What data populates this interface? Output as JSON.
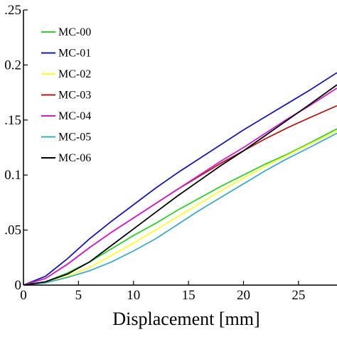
{
  "chart_data": {
    "type": "line",
    "title": "",
    "xlabel": "Displacement [mm]",
    "ylabel": "",
    "xlim": [
      0,
      28.5
    ],
    "ylim": [
      0,
      0.25
    ],
    "x_ticks": [
      0,
      5,
      10,
      15,
      20,
      25
    ],
    "x_tick_labels": [
      "0",
      "5",
      "10",
      "15",
      "20",
      "25"
    ],
    "y_ticks": [
      0,
      0.05,
      0.1,
      0.15,
      0.2,
      0.25
    ],
    "y_tick_labels": [
      "0",
      ".05",
      "0.1",
      ".15",
      "0.2",
      ".25"
    ],
    "grid": false,
    "legend_position": "top-left",
    "series": [
      {
        "name": "MC-00",
        "color": "#33cc33",
        "x": [
          0,
          2,
          4,
          6,
          8,
          10,
          12,
          14,
          16,
          18,
          20,
          22,
          24,
          26,
          28.5
        ],
        "y": [
          0,
          0.003,
          0.011,
          0.021,
          0.033,
          0.045,
          0.056,
          0.068,
          0.079,
          0.09,
          0.1,
          0.11,
          0.119,
          0.129,
          0.142
        ]
      },
      {
        "name": "MC-01",
        "color": "#1a1aa6",
        "x": [
          0,
          2,
          4,
          6,
          8,
          10,
          12,
          14,
          16,
          18,
          20,
          22,
          24,
          26,
          28.5
        ],
        "y": [
          0,
          0.008,
          0.024,
          0.042,
          0.058,
          0.073,
          0.088,
          0.102,
          0.115,
          0.128,
          0.141,
          0.153,
          0.165,
          0.177,
          0.193
        ]
      },
      {
        "name": "MC-02",
        "color": "#ffff33",
        "x": [
          0,
          2,
          4,
          6,
          8,
          10,
          12,
          14,
          16,
          18,
          20,
          22,
          24,
          26,
          28.5
        ],
        "y": [
          0,
          0.002,
          0.008,
          0.016,
          0.027,
          0.038,
          0.05,
          0.062,
          0.074,
          0.086,
          0.097,
          0.108,
          0.118,
          0.128,
          0.14
        ]
      },
      {
        "name": "MC-03",
        "color": "#b31a1a",
        "x": [
          0,
          2,
          4,
          6,
          8,
          10,
          12,
          14,
          16,
          18,
          20,
          22,
          24,
          26,
          28.5
        ],
        "y": [
          0,
          0.006,
          0.019,
          0.034,
          0.048,
          0.061,
          0.074,
          0.087,
          0.099,
          0.111,
          0.122,
          0.133,
          0.143,
          0.152,
          0.163
        ]
      },
      {
        "name": "MC-04",
        "color": "#cc22cc",
        "x": [
          0,
          2,
          4,
          6,
          8,
          10,
          12,
          14,
          16,
          18,
          20,
          22,
          24,
          26,
          28.5
        ],
        "y": [
          0,
          0.006,
          0.019,
          0.034,
          0.048,
          0.061,
          0.074,
          0.087,
          0.1,
          0.113,
          0.125,
          0.138,
          0.151,
          0.163,
          0.179
        ]
      },
      {
        "name": "MC-05",
        "color": "#3fa9c8",
        "x": [
          0,
          2,
          4,
          6,
          8,
          10,
          12,
          14,
          16,
          18,
          20,
          22,
          24,
          26,
          28.5
        ],
        "y": [
          0,
          0.002,
          0.007,
          0.013,
          0.021,
          0.031,
          0.042,
          0.055,
          0.068,
          0.08,
          0.092,
          0.104,
          0.115,
          0.125,
          0.138
        ]
      },
      {
        "name": "MC-06",
        "color": "#000000",
        "x": [
          0,
          2,
          4,
          6,
          8,
          10,
          12,
          14,
          16,
          18,
          20,
          22,
          24,
          26,
          28.5
        ],
        "y": [
          0,
          0.003,
          0.01,
          0.021,
          0.036,
          0.051,
          0.066,
          0.081,
          0.095,
          0.109,
          0.122,
          0.136,
          0.15,
          0.164,
          0.182
        ]
      }
    ]
  }
}
